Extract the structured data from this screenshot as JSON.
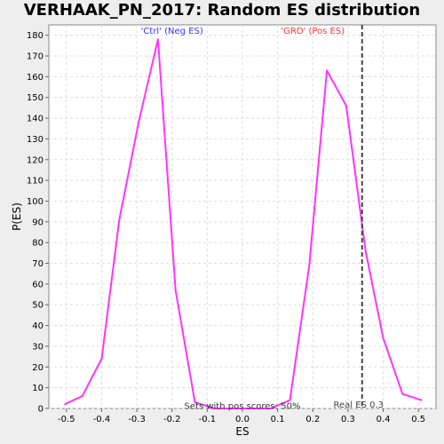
{
  "chart_data": {
    "type": "line",
    "title": "VERHAAK_PN_2017: Random ES distribution",
    "xlabel": "ES",
    "ylabel": "P(ES)",
    "xlim": [
      -0.55,
      0.55
    ],
    "ylim": [
      0,
      185
    ],
    "xticks": [
      -0.5,
      -0.4,
      -0.3,
      -0.2,
      -0.1,
      0.0,
      0.1,
      0.2,
      0.3,
      0.4,
      0.5
    ],
    "xtick_labels": [
      "-0.5",
      "-0.4",
      "-0.3",
      "-0.2",
      "-0.1",
      "0.0",
      "0.1",
      "0.2",
      "0.3",
      "0.4",
      "0.5"
    ],
    "yticks": [
      0,
      10,
      20,
      30,
      40,
      50,
      60,
      70,
      80,
      90,
      100,
      110,
      120,
      130,
      140,
      150,
      160,
      170,
      180
    ],
    "grid": true,
    "series": [
      {
        "name": "Random ES distribution",
        "color": "#ff33ff",
        "x": [
          -0.505,
          -0.455,
          -0.4,
          -0.35,
          -0.295,
          -0.24,
          -0.19,
          -0.135,
          -0.08,
          -0.03,
          0.03,
          0.08,
          0.135,
          0.19,
          0.24,
          0.295,
          0.35,
          0.4,
          0.455,
          0.51
        ],
        "y": [
          2,
          6,
          24,
          91,
          138,
          178,
          57,
          3,
          0,
          0,
          0,
          0,
          4,
          69,
          163,
          146,
          76,
          34,
          7,
          4
        ]
      }
    ],
    "real_es": {
      "value": 0.34,
      "label": "Real ES 0.3",
      "color": "#444444"
    },
    "annotations": [
      {
        "text": "'Ctrl' (Neg ES)",
        "x": -0.2,
        "y": 182,
        "color": "#3333ff"
      },
      {
        "text": "'GRD' (Pos ES)",
        "x": 0.2,
        "y": 182,
        "color": "#ff3333"
      },
      {
        "text": "Sets with pos scores: 50%",
        "x": 0.0,
        "y": 1,
        "color": "#333333"
      }
    ]
  }
}
